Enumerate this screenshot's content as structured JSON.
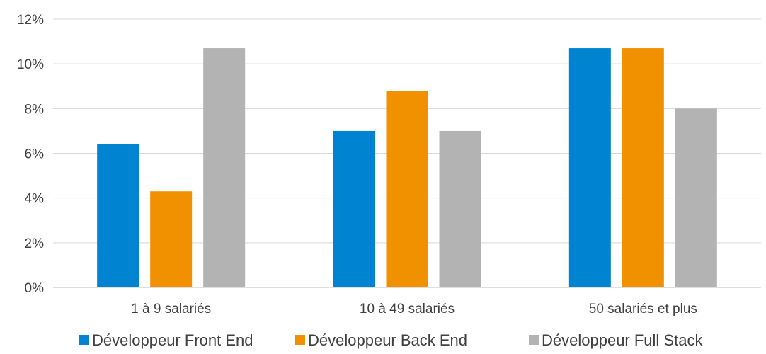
{
  "chart_data": {
    "type": "bar",
    "title": "",
    "xlabel": "",
    "ylabel": "",
    "categories": [
      "1 à 9 salariés",
      "10 à 49 salariés",
      "50 salariés et plus"
    ],
    "series": [
      {
        "name": "Développeur Front End",
        "color": "#0084d1",
        "values": [
          6.4,
          7.0,
          10.7
        ]
      },
      {
        "name": "Développeur Back End",
        "color": "#f29100",
        "values": [
          4.3,
          8.8,
          10.7
        ]
      },
      {
        "name": "Développeur Full Stack",
        "color": "#b3b3b3",
        "values": [
          10.7,
          7.0,
          8.0
        ]
      }
    ],
    "ylim": [
      0,
      12
    ],
    "yticks": [
      "0%",
      "2%",
      "4%",
      "6%",
      "8%",
      "10%",
      "12%"
    ],
    "grid": true,
    "legend": "bottom"
  }
}
